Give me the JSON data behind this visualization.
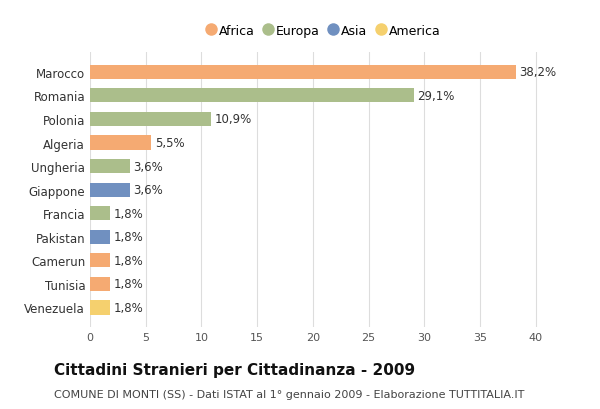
{
  "categories": [
    "Marocco",
    "Romania",
    "Polonia",
    "Algeria",
    "Ungheria",
    "Giappone",
    "Francia",
    "Pakistan",
    "Camerun",
    "Tunisia",
    "Venezuela"
  ],
  "values": [
    38.2,
    29.1,
    10.9,
    5.5,
    3.6,
    3.6,
    1.8,
    1.8,
    1.8,
    1.8,
    1.8
  ],
  "labels": [
    "38,2%",
    "29,1%",
    "10,9%",
    "5,5%",
    "3,6%",
    "3,6%",
    "1,8%",
    "1,8%",
    "1,8%",
    "1,8%",
    "1,8%"
  ],
  "continents": [
    "Africa",
    "Europa",
    "Europa",
    "Africa",
    "Europa",
    "Asia",
    "Europa",
    "Asia",
    "Africa",
    "Africa",
    "America"
  ],
  "colors": {
    "Africa": "#F5AA72",
    "Europa": "#ABBE8B",
    "Asia": "#7090C0",
    "America": "#F5D06E"
  },
  "legend_order": [
    "Africa",
    "Europa",
    "Asia",
    "America"
  ],
  "xlim": [
    0,
    42
  ],
  "xticks": [
    0,
    5,
    10,
    15,
    20,
    25,
    30,
    35,
    40
  ],
  "title": "Cittadini Stranieri per Cittadinanza - 2009",
  "subtitle": "COMUNE DI MONTI (SS) - Dati ISTAT al 1° gennaio 2009 - Elaborazione TUTTITALIA.IT",
  "background_color": "#ffffff",
  "bar_height": 0.6,
  "label_fontsize": 8.5,
  "title_fontsize": 11,
  "subtitle_fontsize": 8,
  "ytick_fontsize": 8.5,
  "xtick_fontsize": 8
}
